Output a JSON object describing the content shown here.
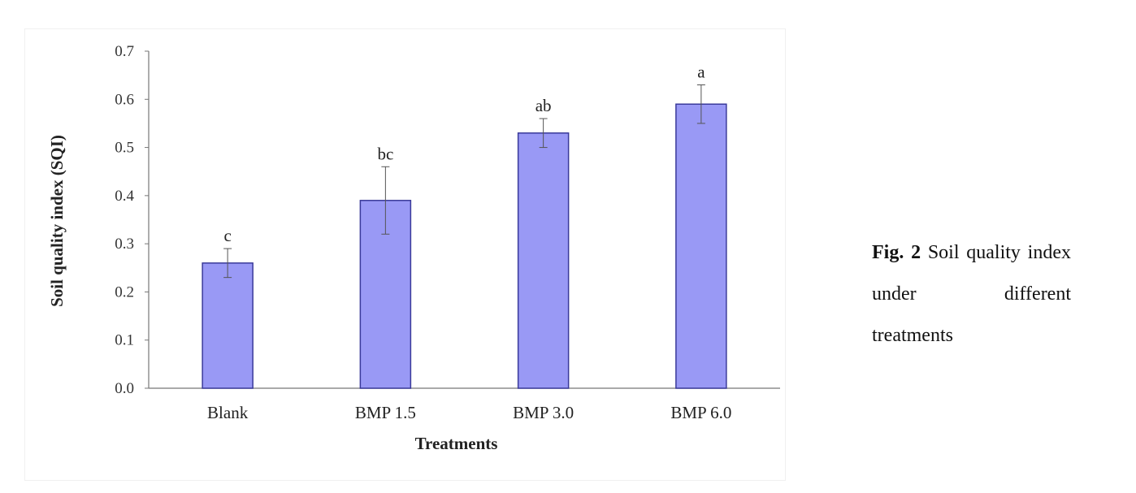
{
  "chart_data": {
    "type": "bar",
    "categories": [
      "Blank",
      "BMP 1.5",
      "BMP 3.0",
      "BMP 6.0"
    ],
    "values": [
      0.26,
      0.39,
      0.53,
      0.59
    ],
    "error": [
      0.03,
      0.07,
      0.03,
      0.04
    ],
    "significance_labels": [
      "c",
      "bc",
      "ab",
      "a"
    ],
    "xlabel": "Treatments",
    "ylabel": "Soil quality index (SQI)",
    "ylim": [
      0,
      0.7
    ],
    "yticks": [
      "0.0",
      "0.1",
      "0.2",
      "0.3",
      "0.4",
      "0.5",
      "0.6",
      "0.7"
    ],
    "grid": false,
    "bar_color": "#9999f5",
    "bar_edge_color": "#3a3a9a"
  },
  "caption": {
    "label": "Fig. 2",
    "text": "Soil quality index under different treatments"
  }
}
